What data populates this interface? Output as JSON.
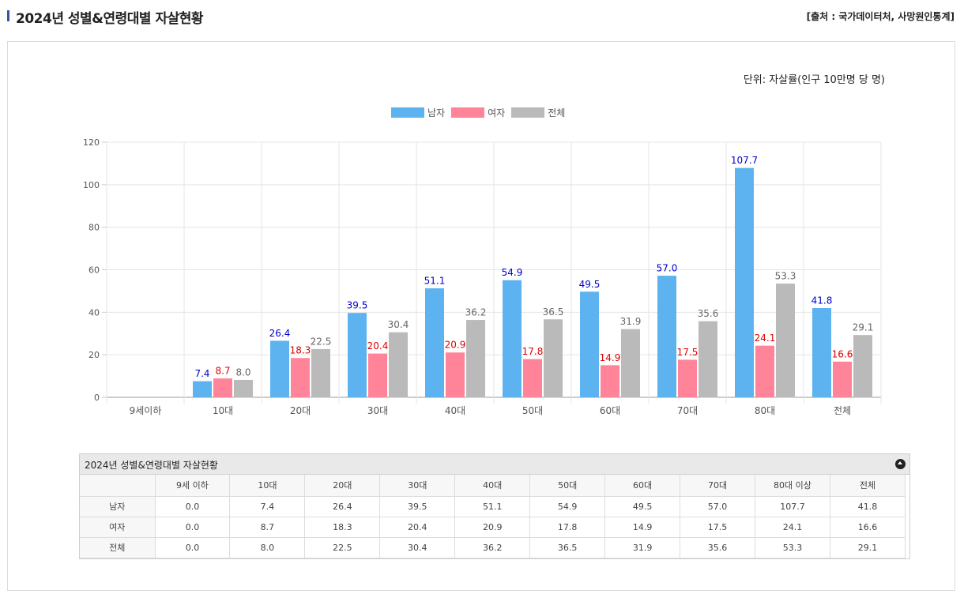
{
  "header": {
    "title": "2024년 성별&연령대별 자살현황",
    "source": "[출처 : 국가데이터처, 사망원인통계]"
  },
  "unit": "단위: 자살률(인구 10만명 당 명)",
  "colors": {
    "male": "#5cb3ef",
    "female": "#ff8499",
    "total": "#bababa",
    "male_label": "#0000cc",
    "female_label": "#dd0000",
    "total_label": "#666666",
    "accent": "#2f5aa8"
  },
  "chart_data": {
    "type": "bar",
    "title": "",
    "xlabel": "",
    "ylabel": "",
    "ylim": [
      0,
      120
    ],
    "yticks": [
      0,
      20,
      40,
      60,
      80,
      100,
      120
    ],
    "categories": [
      "9세이하",
      "10대",
      "20대",
      "30대",
      "40대",
      "50대",
      "60대",
      "70대",
      "80대",
      "전체"
    ],
    "series": [
      {
        "name": "남자",
        "values": [
          0.0,
          7.4,
          26.4,
          39.5,
          51.1,
          54.9,
          49.5,
          57.0,
          107.7,
          41.8
        ]
      },
      {
        "name": "여자",
        "values": [
          0.0,
          8.7,
          18.3,
          20.4,
          20.9,
          17.8,
          14.9,
          17.5,
          24.1,
          16.6
        ]
      },
      {
        "name": "전체",
        "values": [
          0.0,
          8.0,
          22.5,
          30.4,
          36.2,
          36.5,
          31.9,
          35.6,
          53.3,
          29.1
        ]
      }
    ],
    "legend": "top-center",
    "grid": true
  },
  "table": {
    "title": "2024년 성별&연령대별 자살현황",
    "headers": [
      "",
      "9세 이하",
      "10대",
      "20대",
      "30대",
      "40대",
      "50대",
      "60대",
      "70대",
      "80대 이상",
      "전체"
    ],
    "rows": [
      {
        "label": "남자",
        "cells": [
          "0.0",
          "7.4",
          "26.4",
          "39.5",
          "51.1",
          "54.9",
          "49.5",
          "57.0",
          "107.7",
          "41.8"
        ]
      },
      {
        "label": "여자",
        "cells": [
          "0.0",
          "8.7",
          "18.3",
          "20.4",
          "20.9",
          "17.8",
          "14.9",
          "17.5",
          "24.1",
          "16.6"
        ]
      },
      {
        "label": "전체",
        "cells": [
          "0.0",
          "8.0",
          "22.5",
          "30.4",
          "36.2",
          "36.5",
          "31.9",
          "35.6",
          "53.3",
          "29.1"
        ]
      }
    ]
  }
}
